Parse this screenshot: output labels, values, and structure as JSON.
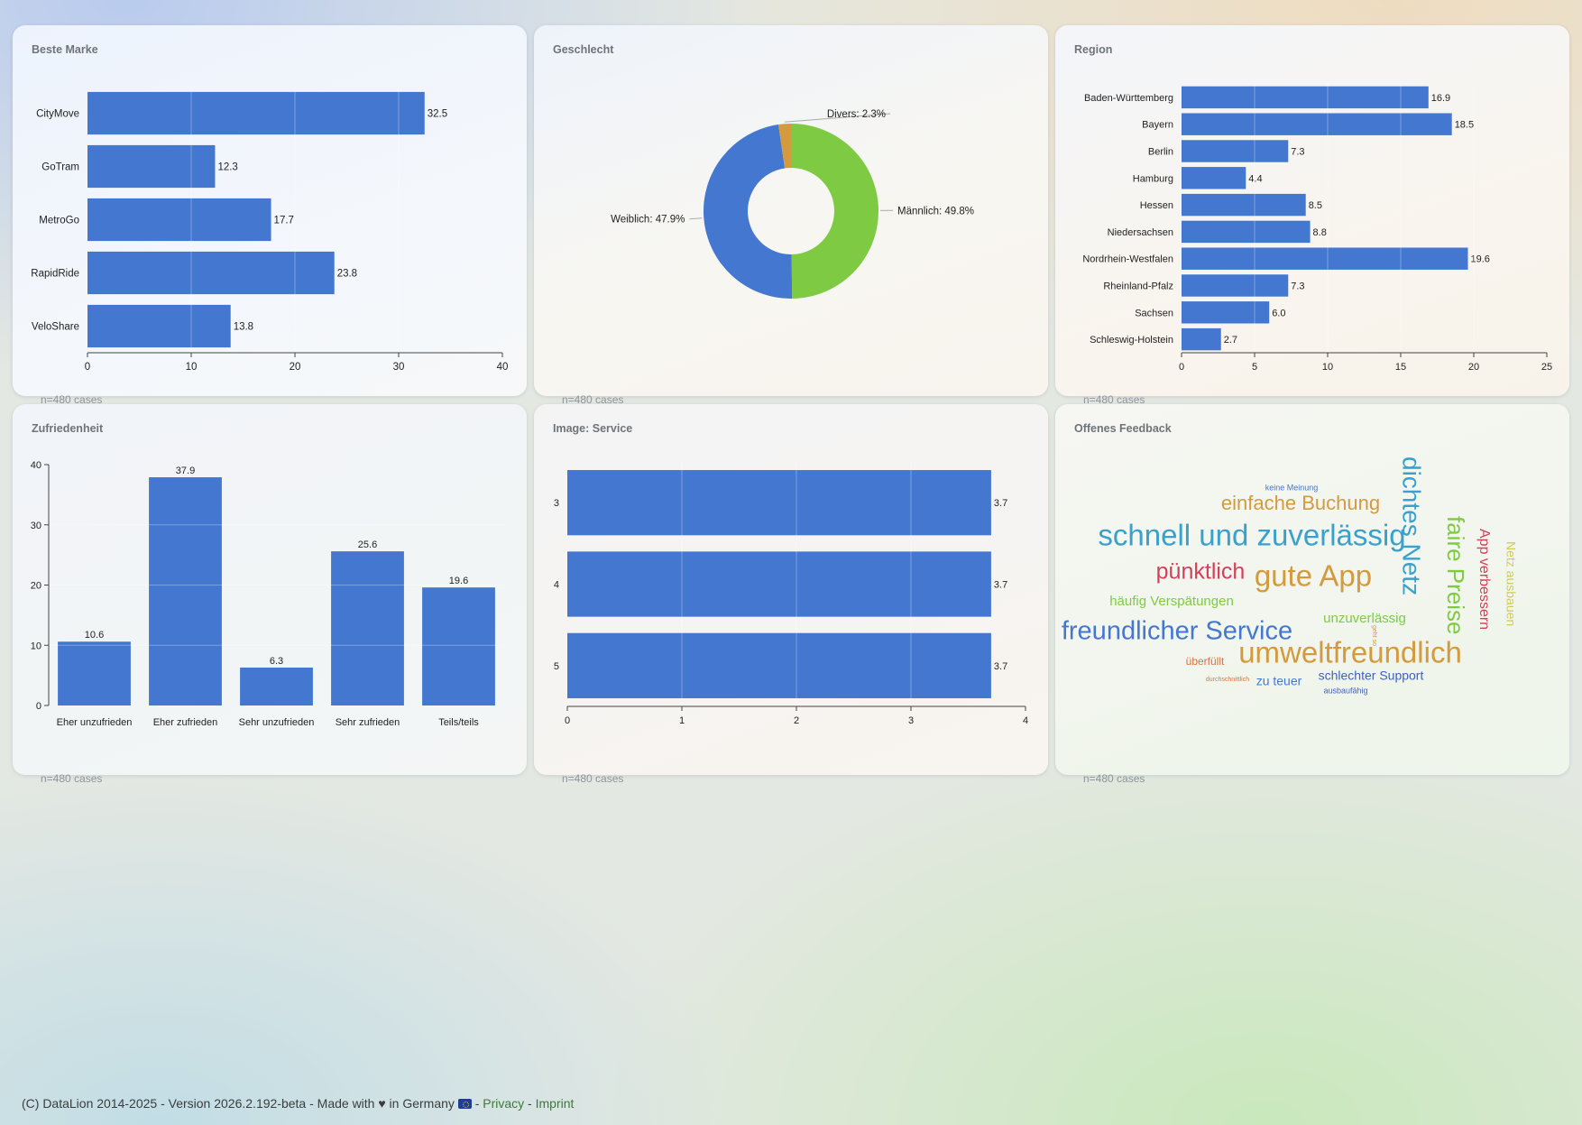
{
  "cards": [
    {
      "id": "brand",
      "title": "Beste Marke",
      "count": "n=480 cases"
    },
    {
      "id": "gender",
      "title": "Geschlecht",
      "count": "n=480 cases"
    },
    {
      "id": "region",
      "title": "Region",
      "count": "n=480 cases"
    },
    {
      "id": "satisfaction",
      "title": "Zufriedenheit",
      "count": "n=480 cases"
    },
    {
      "id": "image_service",
      "title": "Image: Service",
      "count": "n=480 cases"
    },
    {
      "id": "feedback",
      "title": "Offenes Feedback",
      "count": "n=480 cases"
    }
  ],
  "colors": {
    "bar": "#4477d0",
    "green": "#7ecb43",
    "orange": "#d39a3e"
  },
  "chart_data": [
    {
      "id": "brand",
      "type": "bar",
      "orientation": "horizontal",
      "title": "Beste Marke",
      "categories": [
        "CityMove",
        "GoTram",
        "MetroGo",
        "RapidRide",
        "VeloShare"
      ],
      "values": [
        32.5,
        12.3,
        17.7,
        23.8,
        13.8
      ],
      "xlim": [
        0,
        40
      ],
      "ticks": [
        0,
        10,
        20,
        30,
        40
      ],
      "grid": true
    },
    {
      "id": "gender",
      "type": "pie",
      "style": "donut",
      "title": "Geschlecht",
      "labels": [
        "Männlich",
        "Weiblich",
        "Divers"
      ],
      "values": [
        49.8,
        47.9,
        2.3
      ],
      "slice_labels": [
        "Männlich: 49.8%",
        "Weiblich: 47.9%",
        "Divers: 2.3%"
      ],
      "colors": [
        "#7ecb43",
        "#4477d0",
        "#d39a3e"
      ]
    },
    {
      "id": "region",
      "type": "bar",
      "orientation": "horizontal",
      "title": "Region",
      "categories": [
        "Baden-Württemberg",
        "Bayern",
        "Berlin",
        "Hamburg",
        "Hessen",
        "Niedersachsen",
        "Nordrhein-Westfalen",
        "Rheinland-Pfalz",
        "Sachsen",
        "Schleswig-Holstein"
      ],
      "values": [
        16.9,
        18.5,
        7.3,
        4.4,
        8.5,
        8.8,
        19.6,
        7.3,
        6.0,
        2.7
      ],
      "xlim": [
        0,
        25
      ],
      "ticks": [
        0,
        5,
        10,
        15,
        20,
        25
      ],
      "grid": true
    },
    {
      "id": "satisfaction",
      "type": "bar",
      "orientation": "vertical",
      "title": "Zufriedenheit",
      "categories": [
        "Eher unzufrieden",
        "Eher zufrieden",
        "Sehr unzufrieden",
        "Sehr zufrieden",
        "Teils/teils"
      ],
      "values": [
        10.6,
        37.9,
        6.3,
        25.6,
        19.6
      ],
      "ylim": [
        0,
        40
      ],
      "ticks": [
        0,
        10,
        20,
        30,
        40
      ],
      "grid": true
    },
    {
      "id": "image_service",
      "type": "bar",
      "orientation": "horizontal",
      "title": "Image: Service",
      "categories": [
        "3",
        "4",
        "5"
      ],
      "values": [
        3.7,
        3.7,
        3.7
      ],
      "xlim": [
        0,
        4
      ],
      "ticks": [
        0,
        1,
        2,
        3,
        4
      ],
      "grid": true
    }
  ],
  "wordcloud": [
    {
      "text": "keine Meinung",
      "color": "#4477d0",
      "weight": 1
    },
    {
      "text": "einfache Buchung",
      "color": "#d39a3e",
      "weight": 4
    },
    {
      "text": "dichtes Netz",
      "color": "#3aa0cc",
      "weight": 6
    },
    {
      "text": "schnell und zuverlässig",
      "color": "#3aa0cc",
      "weight": 6
    },
    {
      "text": "faire Preise",
      "color": "#7ecb43",
      "weight": 5
    },
    {
      "text": "App verbessern",
      "color": "#d4405a",
      "weight": 3
    },
    {
      "text": "Netz ausbauen",
      "color": "#cfcc55",
      "weight": 3
    },
    {
      "text": "pünktlich",
      "color": "#d4405a",
      "weight": 5
    },
    {
      "text": "gute App",
      "color": "#d39a3e",
      "weight": 6
    },
    {
      "text": "häufig Verspätungen",
      "color": "#7ecb43",
      "weight": 3
    },
    {
      "text": "unzuverlässig",
      "color": "#7ecb43",
      "weight": 3
    },
    {
      "text": "freundlicher Service",
      "color": "#4477d0",
      "weight": 6
    },
    {
      "text": "umweltfreundlich",
      "color": "#d39a3e",
      "weight": 6
    },
    {
      "text": "geht so",
      "color": "#d39a3e",
      "weight": 1
    },
    {
      "text": "überfüllt",
      "color": "#d8743a",
      "weight": 2
    },
    {
      "text": "durchschnittlich",
      "color": "#d8743a",
      "weight": 1
    },
    {
      "text": "zu teuer",
      "color": "#4477d0",
      "weight": 3
    },
    {
      "text": "schlechter Support",
      "color": "#4060c0",
      "weight": 3
    },
    {
      "text": "ausbaufähig",
      "color": "#4060c0",
      "weight": 1
    }
  ],
  "footer": {
    "text": "(C) DataLion 2014-2025 - Version 2026.2.192-beta - Made with ♥ in Germany",
    "separator": " - ",
    "privacy": "Privacy",
    "imprint": "Imprint"
  }
}
